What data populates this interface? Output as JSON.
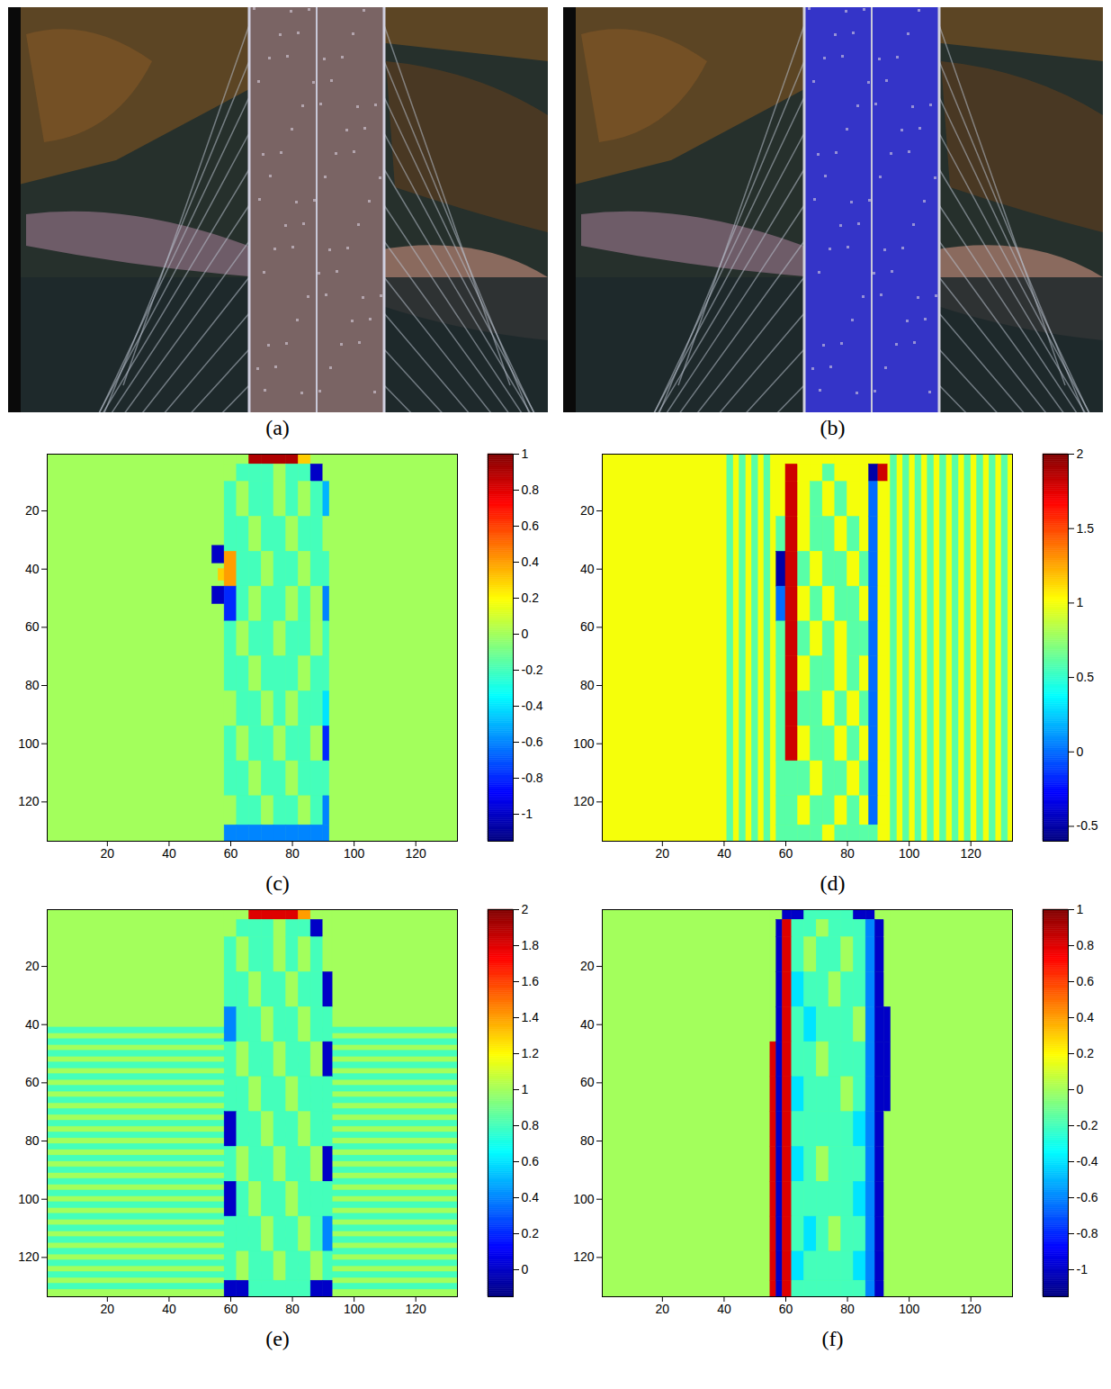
{
  "chart_data": [
    {
      "type": "image",
      "caption": "(a)",
      "color": "#7a6464"
    },
    {
      "type": "image",
      "caption": "(b)",
      "color": "#3434c8"
    },
    {
      "type": "contour",
      "caption": "(c)",
      "xlim": [
        0.5,
        133.5
      ],
      "ylim": [
        133.5,
        0.5
      ],
      "xticks": [
        20,
        40,
        60,
        80,
        100,
        120
      ],
      "yticks": [
        20,
        40,
        60,
        80,
        100,
        120
      ],
      "colorbar": {
        "range": [
          -1.15,
          1
        ],
        "ticks": [
          -1,
          -0.8,
          -0.6,
          -0.4,
          -0.2,
          0,
          0.2,
          0.4,
          0.6,
          0.8,
          1
        ]
      },
      "cells": [
        [
          0.5,
          133.5,
          0.5,
          133.5,
          0
        ],
        [
          54,
          58,
          32,
          38,
          -1
        ],
        [
          56,
          58,
          40,
          44,
          0.3
        ],
        [
          54,
          58,
          46,
          52,
          -1
        ]
      ],
      "strip_cells": {
        "x_edges": [
          58,
          62,
          66,
          70,
          74,
          78,
          82,
          86,
          90,
          92
        ],
        "y_edges": [
          0.5,
          4,
          10,
          22,
          34,
          46,
          58,
          70,
          82,
          94,
          106,
          118,
          128,
          133.5
        ],
        "values": [
          [
            0,
            0,
            0.9,
            0.9,
            0.9,
            0.9,
            0.3,
            0,
            0
          ],
          [
            0,
            -0.2,
            -0.2,
            -0.2,
            0,
            -0.2,
            -0.2,
            -1,
            0
          ],
          [
            -0.2,
            0,
            -0.2,
            -0.2,
            0,
            -0.2,
            0,
            -0.2,
            -0.5
          ],
          [
            -0.2,
            -0.2,
            0,
            -0.2,
            -0.2,
            0,
            -0.2,
            -0.2,
            0
          ],
          [
            0.4,
            -0.2,
            -0.2,
            0,
            -0.2,
            -0.2,
            0,
            -0.2,
            -0.2
          ],
          [
            -0.8,
            -0.2,
            0,
            -0.2,
            -0.2,
            0,
            -0.2,
            0,
            -0.6
          ],
          [
            -0.2,
            0,
            -0.2,
            -0.2,
            0,
            -0.2,
            -0.2,
            0,
            -0.2
          ],
          [
            -0.2,
            -0.2,
            0,
            -0.2,
            -0.2,
            -0.2,
            0,
            -0.2,
            -0.2
          ],
          [
            0,
            -0.2,
            -0.2,
            0,
            -0.2,
            0,
            -0.2,
            -0.2,
            -0.4
          ],
          [
            -0.2,
            0,
            -0.2,
            -0.2,
            0,
            -0.2,
            -0.2,
            0,
            -0.8
          ],
          [
            -0.2,
            -0.2,
            0,
            -0.2,
            -0.2,
            0,
            -0.2,
            -0.2,
            -0.2
          ],
          [
            0,
            -0.2,
            -0.2,
            0,
            -0.2,
            -0.2,
            0,
            -0.2,
            -0.6
          ],
          [
            -0.6,
            -0.6,
            -0.6,
            -0.6,
            -0.6,
            -0.6,
            -0.6,
            -0.6,
            -0.6
          ]
        ]
      }
    },
    {
      "type": "contour",
      "caption": "(d)",
      "xlim": [
        0.5,
        133.5
      ],
      "ylim": [
        133.5,
        0.5
      ],
      "xticks": [
        20,
        40,
        60,
        80,
        100,
        120
      ],
      "yticks": [
        20,
        40,
        60,
        80,
        100,
        120
      ],
      "colorbar": {
        "range": [
          -0.6,
          2
        ],
        "ticks": [
          -0.5,
          0,
          0.5,
          1,
          1.5,
          2
        ]
      },
      "cells": [
        [
          0.5,
          133.5,
          0.5,
          133.5,
          1
        ],
        [
          41,
          43,
          0.5,
          133.5,
          0.6
        ],
        [
          45,
          47,
          0.5,
          133.5,
          0.6
        ],
        [
          49,
          51,
          0.5,
          133.5,
          0.6
        ],
        [
          53,
          55,
          0.5,
          133.5,
          0.6
        ],
        [
          94,
          96,
          0.5,
          133.5,
          0.6
        ],
        [
          98,
          100,
          0.5,
          133.5,
          0.6
        ],
        [
          102,
          104,
          0.5,
          133.5,
          0.6
        ],
        [
          106,
          108,
          0.5,
          133.5,
          0.6
        ],
        [
          110,
          112,
          0.5,
          133.5,
          0.6
        ],
        [
          114,
          116,
          0.5,
          133.5,
          0.6
        ],
        [
          118,
          120,
          0.5,
          133.5,
          0.6
        ],
        [
          122,
          124,
          0.5,
          133.5,
          0.6
        ],
        [
          126,
          128,
          0.5,
          133.5,
          0.6
        ],
        [
          130,
          132,
          0.5,
          133.5,
          0.6
        ]
      ],
      "strip_cells": {
        "x_edges": [
          57,
          60,
          64,
          68,
          72,
          76,
          80,
          84,
          87,
          90,
          93
        ],
        "y_edges": [
          0.5,
          4,
          10,
          22,
          34,
          46,
          58,
          70,
          82,
          94,
          106,
          118,
          128,
          133.5
        ],
        "values": [
          [
            1,
            1,
            1,
            1,
            1,
            1,
            1,
            1,
            1,
            1
          ],
          [
            1,
            1.8,
            1,
            1,
            0.6,
            1,
            1,
            1,
            -0.5,
            1.8
          ],
          [
            1,
            1.8,
            1,
            0.6,
            1,
            0.6,
            1,
            1,
            0,
            1
          ],
          [
            0.6,
            1.8,
            1,
            0.6,
            0.6,
            1,
            0.6,
            1,
            0,
            1
          ],
          [
            -0.5,
            1.8,
            0.6,
            1,
            0.6,
            0.6,
            1,
            0.6,
            0,
            1
          ],
          [
            0,
            1.8,
            1,
            0.6,
            1,
            0.6,
            0.6,
            1,
            0,
            1
          ],
          [
            0.6,
            1.8,
            0.6,
            1,
            0.6,
            1,
            0.6,
            0.6,
            0,
            1
          ],
          [
            0.6,
            1.8,
            1,
            0.6,
            0.6,
            1,
            0.6,
            1,
            0,
            1
          ],
          [
            0.6,
            1.8,
            0.6,
            0.6,
            1,
            0.6,
            1,
            0.6,
            0,
            1
          ],
          [
            0.6,
            1.8,
            1,
            0.6,
            0.6,
            1,
            0.6,
            1,
            0,
            1
          ],
          [
            0.6,
            0.6,
            0.6,
            1,
            0.6,
            0.6,
            1,
            0.6,
            0,
            1
          ],
          [
            0.6,
            0.6,
            1,
            0.6,
            0.6,
            1,
            0.6,
            1,
            0,
            1
          ],
          [
            0.6,
            0.6,
            0.6,
            0.6,
            1,
            0.6,
            0.6,
            0.6,
            0.6,
            1
          ]
        ]
      }
    },
    {
      "type": "contour",
      "caption": "(e)",
      "xlim": [
        0.5,
        133.5
      ],
      "ylim": [
        133.5,
        0.5
      ],
      "xticks": [
        20,
        40,
        60,
        80,
        100,
        120
      ],
      "yticks": [
        20,
        40,
        60,
        80,
        100,
        120
      ],
      "colorbar": {
        "range": [
          -0.15,
          2
        ],
        "ticks": [
          0,
          0.2,
          0.4,
          0.6,
          0.8,
          1,
          1.2,
          1.4,
          1.6,
          1.8,
          2
        ]
      },
      "cells": [
        [
          0.5,
          133.5,
          0.5,
          133.5,
          1
        ],
        [
          0.5,
          133.5,
          41,
          43,
          0.8
        ],
        [
          0.5,
          133.5,
          45,
          47,
          0.8
        ],
        [
          0.5,
          133.5,
          49,
          51,
          0.8
        ],
        [
          0.5,
          133.5,
          53,
          55,
          0.8
        ],
        [
          0.5,
          133.5,
          57,
          59,
          0.8
        ],
        [
          0.5,
          133.5,
          61,
          63,
          0.8
        ],
        [
          0.5,
          133.5,
          65,
          67,
          0.8
        ],
        [
          0.5,
          133.5,
          69,
          71,
          0.8
        ],
        [
          0.5,
          133.5,
          73,
          75,
          0.8
        ],
        [
          0.5,
          133.5,
          77,
          79,
          0.8
        ],
        [
          0.5,
          133.5,
          81,
          83,
          0.8
        ],
        [
          0.5,
          133.5,
          85,
          87,
          0.8
        ],
        [
          0.5,
          133.5,
          89,
          91,
          0.8
        ],
        [
          0.5,
          133.5,
          93,
          95,
          0.8
        ],
        [
          0.5,
          133.5,
          97,
          99,
          0.8
        ],
        [
          0.5,
          133.5,
          101,
          103,
          0.8
        ],
        [
          0.5,
          133.5,
          105,
          107,
          0.8
        ],
        [
          0.5,
          133.5,
          109,
          111,
          0.8
        ],
        [
          0.5,
          133.5,
          113,
          115,
          0.8
        ],
        [
          0.5,
          133.5,
          117,
          119,
          0.8
        ],
        [
          0.5,
          133.5,
          121,
          123,
          0.8
        ],
        [
          0.5,
          133.5,
          125,
          127,
          0.8
        ],
        [
          0.5,
          133.5,
          129,
          131,
          0.8
        ]
      ],
      "strip_cells": {
        "x_edges": [
          58,
          62,
          66,
          70,
          74,
          78,
          82,
          86,
          90,
          93
        ],
        "y_edges": [
          0.5,
          4,
          10,
          22,
          34,
          46,
          58,
          70,
          82,
          94,
          106,
          118,
          128,
          133.5
        ],
        "values": [
          [
            1,
            1,
            1.8,
            1.8,
            1.8,
            1.8,
            1.4,
            1,
            1
          ],
          [
            1,
            0.8,
            0.8,
            0.8,
            1,
            0.8,
            0.8,
            0,
            1
          ],
          [
            0.8,
            1,
            0.8,
            0.8,
            1,
            0.8,
            1,
            0.8,
            1
          ],
          [
            0.8,
            0.8,
            1,
            0.8,
            0.8,
            1,
            0.8,
            0.8,
            0
          ],
          [
            0.4,
            0.8,
            0.8,
            1,
            0.8,
            0.8,
            1,
            0.8,
            0.8
          ],
          [
            0.8,
            1,
            0.8,
            0.8,
            1,
            0.8,
            0.8,
            1,
            0
          ],
          [
            0.8,
            0.8,
            1,
            0.8,
            0.8,
            1,
            0.8,
            0.8,
            0.8
          ],
          [
            0,
            0.8,
            0.8,
            1,
            0.8,
            0.8,
            1,
            0.8,
            0.8
          ],
          [
            0.8,
            1,
            0.8,
            0.8,
            1,
            0.8,
            0.8,
            1,
            0
          ],
          [
            0,
            0.8,
            1,
            0.8,
            0.8,
            1,
            0.8,
            0.8,
            0.8
          ],
          [
            0.8,
            0.8,
            0.8,
            1,
            0.8,
            0.8,
            1,
            0.8,
            0.4
          ],
          [
            0.8,
            1,
            0.8,
            0.8,
            1,
            0.8,
            0.8,
            1,
            0.8
          ],
          [
            0,
            0,
            0.8,
            0.8,
            0.8,
            0.8,
            0.8,
            0,
            0
          ]
        ]
      }
    },
    {
      "type": "contour",
      "caption": "(f)",
      "xlim": [
        0.5,
        133.5
      ],
      "ylim": [
        133.5,
        0.5
      ],
      "xticks": [
        20,
        40,
        60,
        80,
        100,
        120
      ],
      "yticks": [
        20,
        40,
        60,
        80,
        100,
        120
      ],
      "colorbar": {
        "range": [
          -1.15,
          1
        ],
        "ticks": [
          -1,
          -0.8,
          -0.6,
          -0.4,
          -0.2,
          0,
          0.2,
          0.4,
          0.6,
          0.8,
          1
        ]
      },
      "cells": [
        [
          0.5,
          133.5,
          0.5,
          133.5,
          0
        ]
      ],
      "strip_cells": {
        "x_edges": [
          55,
          57,
          59,
          62,
          66,
          70,
          74,
          78,
          82,
          86,
          89,
          92,
          94
        ],
        "y_edges": [
          0.5,
          4,
          10,
          22,
          34,
          46,
          58,
          70,
          82,
          94,
          106,
          118,
          128,
          133.5
        ],
        "values": [
          [
            0,
            0,
            -1,
            -1,
            -0.2,
            -0.2,
            -0.2,
            -0.2,
            -1,
            -1,
            0,
            0
          ],
          [
            0,
            -1,
            0.8,
            -0.2,
            -0.2,
            0,
            -0.2,
            -0.2,
            -0.2,
            -0.6,
            -1,
            0
          ],
          [
            0,
            -1,
            0.8,
            -0.2,
            0,
            -0.2,
            -0.2,
            0,
            -0.2,
            -0.6,
            -1,
            0
          ],
          [
            0,
            -1,
            0.8,
            -0.4,
            -0.2,
            -0.2,
            0,
            -0.2,
            -0.2,
            -0.6,
            -1,
            0
          ],
          [
            0,
            -1,
            0.8,
            -0.2,
            -0.4,
            -0.2,
            -0.2,
            -0.2,
            0,
            -0.6,
            -1,
            -1
          ],
          [
            0.8,
            -1,
            0.8,
            -0.2,
            -0.2,
            0,
            -0.2,
            -0.2,
            -0.2,
            -0.6,
            -1,
            -1
          ],
          [
            0.8,
            -1,
            0.8,
            -0.4,
            -0.2,
            -0.2,
            -0.2,
            0,
            -0.2,
            -0.6,
            -1,
            -1
          ],
          [
            0.8,
            -1,
            0.8,
            -0.2,
            -0.2,
            -0.2,
            -0.2,
            -0.2,
            -0.4,
            -0.6,
            -1,
            0
          ],
          [
            0.8,
            -1,
            0.8,
            -0.4,
            -0.2,
            0,
            -0.2,
            -0.2,
            -0.2,
            -0.6,
            -1,
            0
          ],
          [
            0.8,
            -1,
            0.8,
            -0.2,
            -0.2,
            -0.2,
            -0.2,
            -0.2,
            -0.4,
            -0.6,
            -1,
            0
          ],
          [
            0.8,
            -1,
            0.8,
            -0.2,
            -0.4,
            -0.2,
            0,
            -0.2,
            -0.2,
            -0.6,
            -1,
            0
          ],
          [
            0.8,
            -1,
            0.8,
            -0.4,
            -0.2,
            -0.2,
            -0.2,
            -0.2,
            -0.4,
            -0.6,
            -1,
            0
          ],
          [
            0.8,
            -1,
            0.8,
            -0.2,
            -0.2,
            -0.2,
            -0.2,
            -0.2,
            -0.2,
            -0.6,
            -1,
            0
          ]
        ]
      }
    }
  ]
}
